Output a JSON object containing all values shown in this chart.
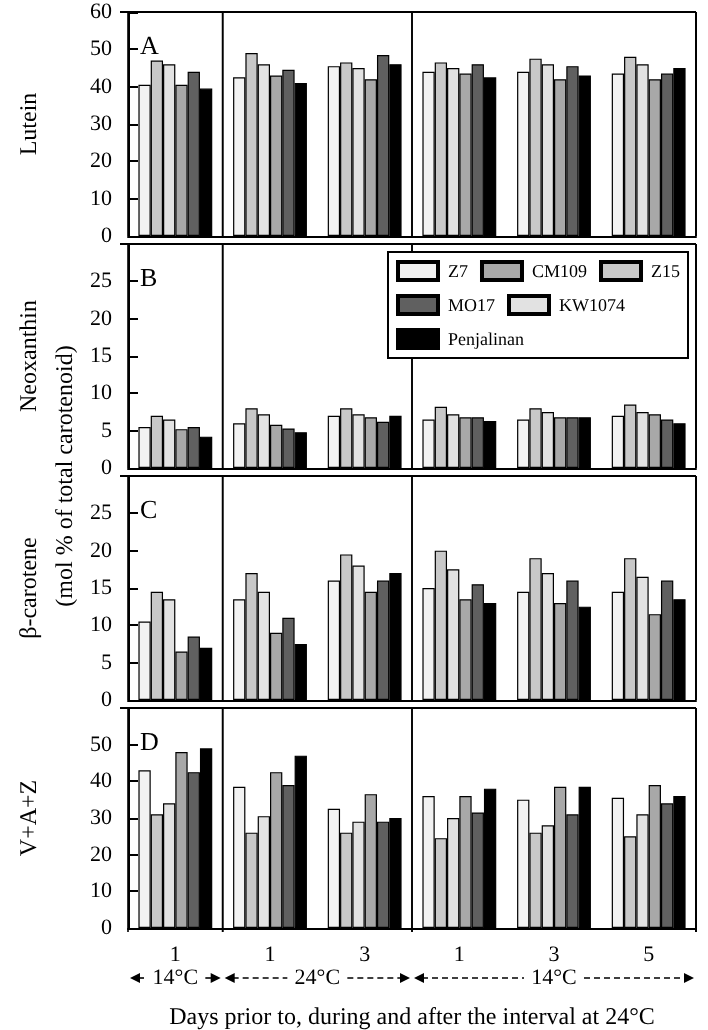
{
  "chart_data": [
    {
      "type": "bar",
      "ylabel": "Lutein",
      "annotations": [
        "A"
      ],
      "categories": [
        "1",
        "1",
        "3",
        "1",
        "3",
        "5"
      ],
      "ylim": [
        0,
        60
      ],
      "yticks": [
        0,
        10,
        20,
        30,
        40,
        50,
        60
      ],
      "grid": false,
      "tick_labels": "y",
      "legend": false,
      "series": [
        {
          "color": "#f2f2f2",
          "values": [
            40.5,
            42.5,
            45.5,
            44,
            44,
            43.5
          ]
        },
        {
          "color": "#c8c8c8",
          "values": [
            47,
            49,
            46.5,
            46.5,
            47.5,
            48
          ]
        },
        {
          "color": "#e2e2e2",
          "values": [
            46,
            46,
            45,
            45,
            46,
            46
          ]
        },
        {
          "color": "#a8a8a8",
          "values": [
            40.5,
            43,
            42,
            43.5,
            42,
            42
          ]
        },
        {
          "color": "#606060",
          "values": [
            44,
            44.5,
            48.5,
            46,
            45.5,
            43.5
          ]
        },
        {
          "color": "#000000",
          "values": [
            39.5,
            41,
            46,
            42.5,
            43,
            45
          ]
        }
      ]
    },
    {
      "type": "bar",
      "ylabel": "Neoxanthin",
      "annotations": [
        "B"
      ],
      "categories": [
        "1",
        "1",
        "3",
        "1",
        "3",
        "5"
      ],
      "ylim": [
        0,
        30
      ],
      "yticks": [
        0,
        5,
        10,
        15,
        20,
        25
      ],
      "grid": false,
      "tick_labels": "y",
      "legend": "top right",
      "series": [
        {
          "name": "Z7",
          "color": "#f2f2f2",
          "values": [
            5.5,
            6,
            7,
            6.5,
            6.5,
            7
          ]
        },
        {
          "name": "Z15",
          "color": "#c8c8c8",
          "values": [
            7,
            8,
            8,
            8.2,
            8,
            8.5
          ]
        },
        {
          "name": "KW1074",
          "color": "#e2e2e2",
          "values": [
            6.5,
            7.2,
            7.2,
            7.2,
            7.5,
            7.5
          ]
        },
        {
          "name": "CM109",
          "color": "#a8a8a8",
          "values": [
            5.2,
            5.8,
            6.8,
            6.8,
            6.8,
            7.2
          ]
        },
        {
          "name": "MO17",
          "color": "#606060",
          "values": [
            5.5,
            5.3,
            6.2,
            6.8,
            6.8,
            6.5
          ]
        },
        {
          "name": "Penjalinan",
          "color": "#000000",
          "values": [
            4.2,
            4.8,
            7,
            6.3,
            6.8,
            6
          ]
        }
      ]
    },
    {
      "type": "bar",
      "ylabel": "β-carotene",
      "annotations": [
        "C",
        "(mol % of total carotenoid)"
      ],
      "categories": [
        "1",
        "1",
        "3",
        "1",
        "3",
        "5"
      ],
      "ylim": [
        0,
        30
      ],
      "yticks": [
        0,
        5,
        10,
        15,
        20,
        25
      ],
      "grid": false,
      "tick_labels": "y",
      "legend": false,
      "series": [
        {
          "color": "#f2f2f2",
          "values": [
            10.5,
            13.5,
            16,
            15,
            14.5,
            14.5
          ]
        },
        {
          "color": "#c8c8c8",
          "values": [
            14.5,
            17,
            19.5,
            20,
            19,
            19
          ]
        },
        {
          "color": "#e2e2e2",
          "values": [
            13.5,
            14.5,
            18,
            17.5,
            17,
            16.5
          ]
        },
        {
          "color": "#a8a8a8",
          "values": [
            6.5,
            9,
            14.5,
            13.5,
            13,
            11.5
          ]
        },
        {
          "color": "#606060",
          "values": [
            8.5,
            11,
            16,
            15.5,
            16,
            16
          ]
        },
        {
          "color": "#000000",
          "values": [
            7,
            7.5,
            17,
            13,
            12.5,
            13.5
          ]
        }
      ]
    },
    {
      "type": "bar",
      "ylabel": "V+A+Z",
      "xlabel": "Days prior to, during and after the interval at 24°C",
      "annotations": [
        "D",
        "14°C",
        "24°C",
        "14°C"
      ],
      "categories": [
        "1",
        "1",
        "3",
        "1",
        "3",
        "5"
      ],
      "ylim": [
        0,
        60
      ],
      "yticks": [
        0,
        10,
        20,
        30,
        40,
        50
      ],
      "grid": false,
      "legend": false,
      "series": [
        {
          "color": "#f2f2f2",
          "values": [
            43,
            38.5,
            32.5,
            36,
            35,
            35.5
          ]
        },
        {
          "color": "#c8c8c8",
          "values": [
            31,
            26,
            26,
            24.5,
            26,
            25
          ]
        },
        {
          "color": "#e2e2e2",
          "values": [
            34,
            30.5,
            29,
            30,
            28,
            31
          ]
        },
        {
          "color": "#a8a8a8",
          "values": [
            48,
            42.5,
            36.5,
            36,
            38.5,
            39
          ]
        },
        {
          "color": "#606060",
          "values": [
            42.5,
            39,
            29,
            31.5,
            31,
            34
          ]
        },
        {
          "color": "#000000",
          "values": [
            49,
            47,
            30,
            38,
            38.5,
            36
          ]
        }
      ]
    }
  ]
}
